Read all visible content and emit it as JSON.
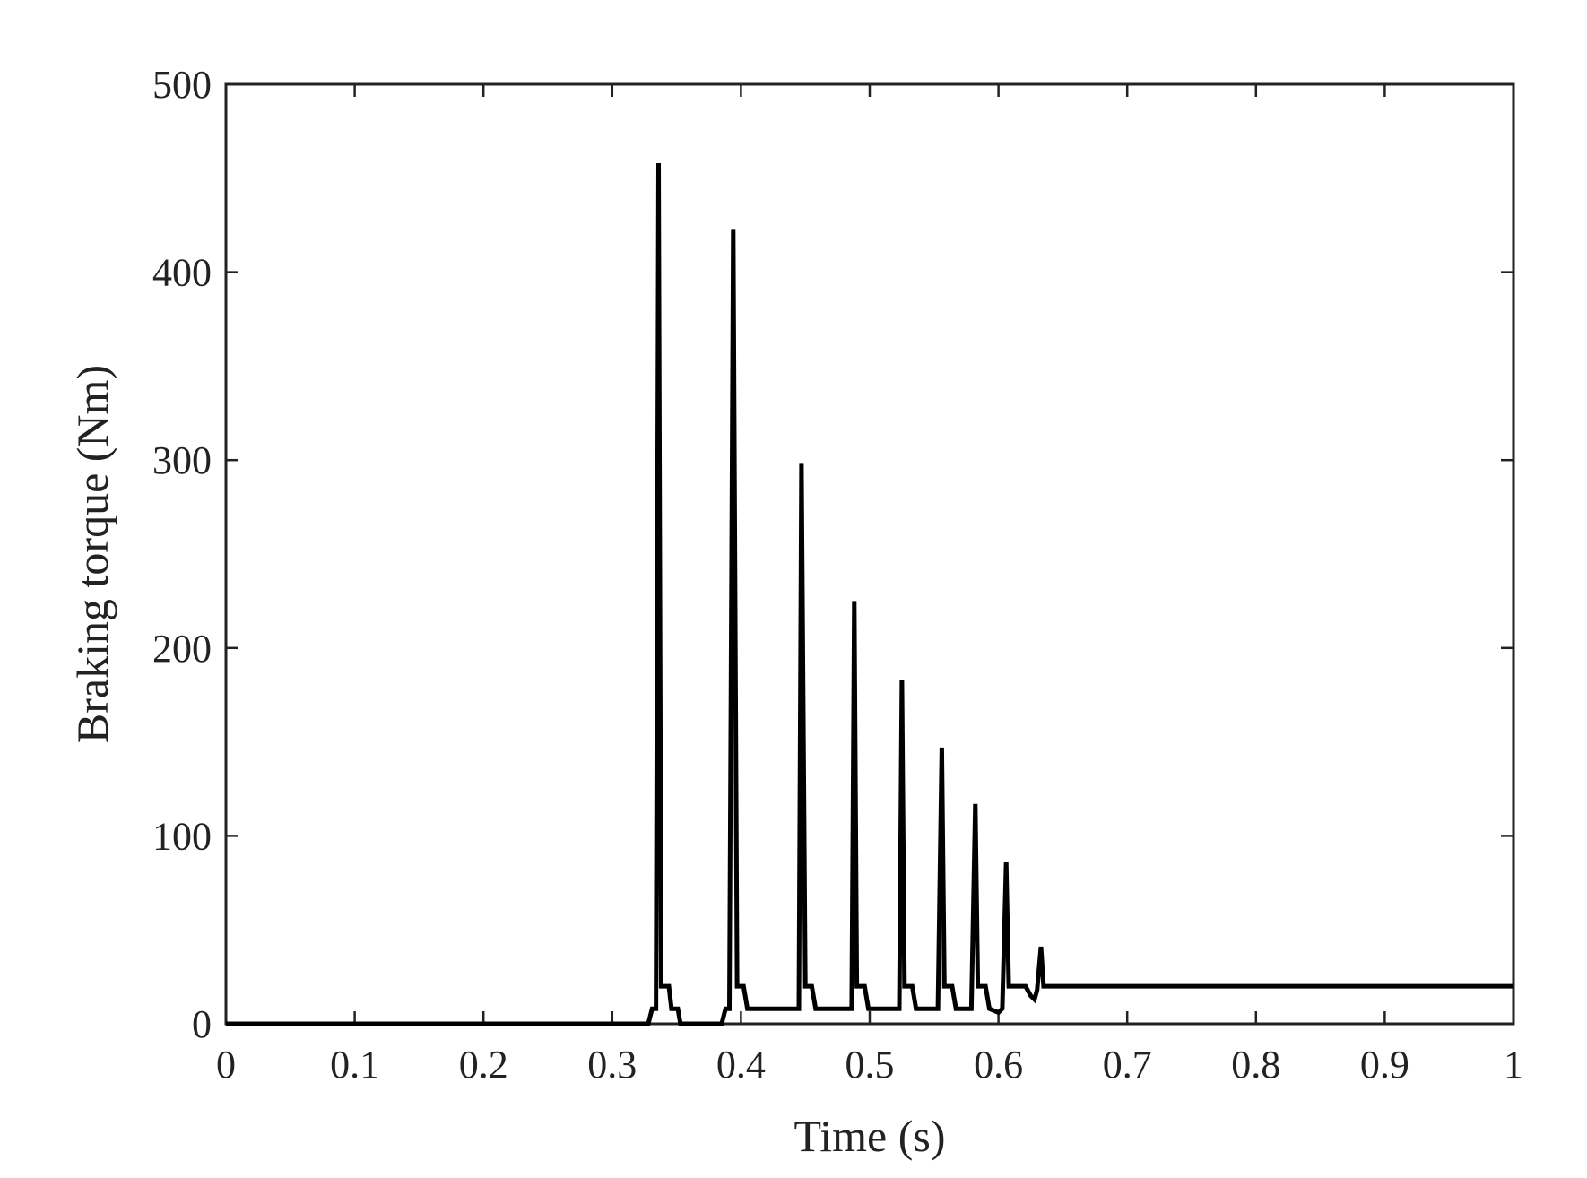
{
  "chart_data": {
    "type": "line",
    "title": "",
    "xlabel": "Time (s)",
    "ylabel": "Braking torque (Nm)",
    "xlim": [
      0,
      1
    ],
    "ylim": [
      0,
      500
    ],
    "xticks": [
      0,
      0.1,
      0.2,
      0.3,
      0.4,
      0.5,
      0.6,
      0.7,
      0.8,
      0.9,
      1
    ],
    "xtick_labels": [
      "0",
      "0.1",
      "0.2",
      "0.3",
      "0.4",
      "0.5",
      "0.6",
      "0.7",
      "0.8",
      "0.9",
      "1"
    ],
    "yticks": [
      0,
      100,
      200,
      300,
      400,
      500
    ],
    "ytick_labels": [
      "0",
      "100",
      "200",
      "300",
      "400",
      "500"
    ],
    "grid": false,
    "legend": "none",
    "line_color": "#000000",
    "series": [
      {
        "x": [
          0,
          0.328,
          0.331,
          0.334,
          0.336,
          0.338,
          0.341,
          0.344,
          0.346,
          0.349,
          0.351,
          0.353,
          0.356,
          0.385,
          0.388,
          0.391,
          0.394,
          0.397,
          0.4,
          0.402,
          0.405,
          0.408,
          0.445,
          0.447,
          0.45,
          0.453,
          0.455,
          0.458,
          0.486,
          0.488,
          0.49,
          0.493,
          0.496,
          0.499,
          0.523,
          0.525,
          0.527,
          0.53,
          0.533,
          0.536,
          0.553,
          0.556,
          0.558,
          0.561,
          0.564,
          0.567,
          0.579,
          0.582,
          0.584,
          0.587,
          0.59,
          0.593,
          0.6,
          0.603,
          0.606,
          0.608,
          0.611,
          0.614,
          0.617,
          0.621,
          0.625,
          0.628,
          0.63,
          0.633,
          0.635,
          0.638,
          0.641,
          0.66,
          1.0
        ],
        "y": [
          0,
          0,
          8,
          8,
          458,
          20,
          20,
          20,
          8,
          8,
          8,
          0,
          0,
          0,
          8,
          8,
          423,
          20,
          20,
          20,
          8,
          8,
          8,
          298,
          20,
          20,
          20,
          8,
          8,
          225,
          20,
          20,
          20,
          8,
          8,
          183,
          20,
          20,
          20,
          8,
          8,
          147,
          20,
          20,
          20,
          8,
          8,
          117,
          20,
          20,
          20,
          8,
          6,
          8,
          86,
          20,
          20,
          20,
          20,
          20,
          15,
          13,
          18,
          41,
          20,
          20,
          20,
          20,
          20
        ]
      }
    ]
  }
}
